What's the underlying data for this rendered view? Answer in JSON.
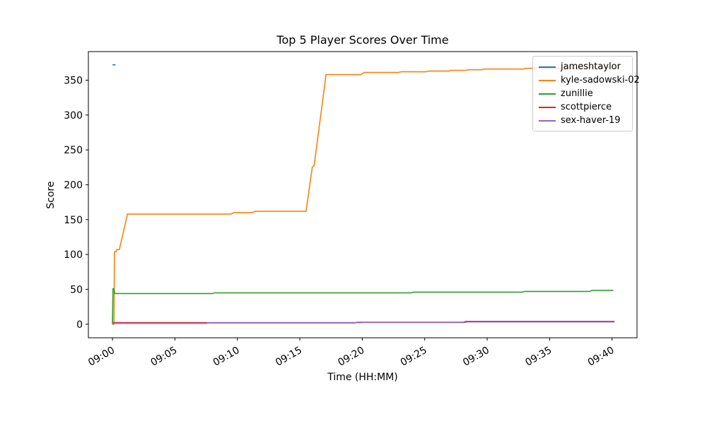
{
  "figure": {
    "title": "Top 5 Player Scores Over Time",
    "xlabel": "Time (HH:MM)",
    "ylabel": "Score"
  },
  "chart_data": {
    "type": "line",
    "title": "Top 5 Player Scores Over Time",
    "xlabel": "Time (HH:MM)",
    "ylabel": "Score",
    "x_unit": "minutes after 09:00",
    "xlim_minutes": [
      -1.93,
      42.0
    ],
    "ylim": [
      -19.5,
      391
    ],
    "grid": false,
    "legend": {
      "position": "upper right",
      "entries": [
        "jameshtaylor",
        "kyle-sadowski-02",
        "zunillie",
        "scottpierce",
        "sex-haver-19"
      ]
    },
    "xticks": [
      {
        "minute": 0,
        "label": "09:00"
      },
      {
        "minute": 5,
        "label": "09:05"
      },
      {
        "minute": 10,
        "label": "09:10"
      },
      {
        "minute": 15,
        "label": "09:15"
      },
      {
        "minute": 20,
        "label": "09:20"
      },
      {
        "minute": 25,
        "label": "09:25"
      },
      {
        "minute": 30,
        "label": "09:30"
      },
      {
        "minute": 35,
        "label": "09:35"
      },
      {
        "minute": 40,
        "label": "09:40"
      }
    ],
    "yticks": [
      0,
      50,
      100,
      150,
      200,
      250,
      300,
      350
    ],
    "series": [
      {
        "name": "jameshtaylor",
        "color": "#1f77b4",
        "points": [
          [
            0,
            372
          ],
          [
            0.25,
            372
          ]
        ]
      },
      {
        "name": "kyle-sadowski-02",
        "color": "#ff7f0e",
        "points": [
          [
            0,
            0
          ],
          [
            0.12,
            0
          ],
          [
            0.16,
            104
          ],
          [
            0.3,
            104
          ],
          [
            0.34,
            107
          ],
          [
            0.55,
            107
          ],
          [
            1.2,
            158
          ],
          [
            9.5,
            158
          ],
          [
            9.7,
            160
          ],
          [
            11.2,
            160
          ],
          [
            11.4,
            162
          ],
          [
            15.5,
            162
          ],
          [
            16.0,
            225
          ],
          [
            16.15,
            228
          ],
          [
            17.1,
            358
          ],
          [
            19.9,
            358
          ],
          [
            20.15,
            361
          ],
          [
            22.9,
            361
          ],
          [
            23.1,
            362
          ],
          [
            25.1,
            362
          ],
          [
            25.3,
            363
          ],
          [
            26.9,
            363
          ],
          [
            27.1,
            364
          ],
          [
            28.3,
            364
          ],
          [
            28.5,
            365
          ],
          [
            29.6,
            365
          ],
          [
            29.8,
            366
          ],
          [
            32.9,
            366
          ],
          [
            33.1,
            367
          ],
          [
            35.9,
            367
          ],
          [
            36.1,
            367.5
          ],
          [
            37.9,
            367.5
          ],
          [
            38.1,
            368.5
          ],
          [
            39.8,
            368.5
          ],
          [
            40.05,
            370
          ],
          [
            40.3,
            370
          ]
        ]
      },
      {
        "name": "zunillie",
        "color": "#2ca02c",
        "points": [
          [
            0,
            0
          ],
          [
            0.04,
            51
          ],
          [
            0.12,
            51
          ],
          [
            0.18,
            44
          ],
          [
            8.0,
            44
          ],
          [
            8.2,
            45
          ],
          [
            23.9,
            45
          ],
          [
            24.1,
            46
          ],
          [
            32.8,
            46
          ],
          [
            33.0,
            47
          ],
          [
            38.2,
            47
          ],
          [
            38.4,
            48.5
          ],
          [
            40.1,
            48.5
          ]
        ]
      },
      {
        "name": "scottpierce",
        "color": "#d62728",
        "points": [
          [
            0,
            0
          ],
          [
            0.05,
            2.2
          ],
          [
            7.5,
            2.2
          ],
          [
            7.7,
            1.8
          ],
          [
            19.4,
            1.8
          ],
          [
            19.6,
            2.8
          ],
          [
            28.1,
            2.8
          ],
          [
            28.3,
            4
          ],
          [
            40.2,
            4
          ]
        ]
      },
      {
        "name": "sex-haver-19",
        "color": "#9467bd",
        "points": [
          [
            0,
            1.2
          ],
          [
            7.5,
            1.2
          ],
          [
            7.7,
            2.2
          ],
          [
            19.9,
            2.2
          ],
          [
            20.1,
            2.5
          ],
          [
            28.2,
            2.5
          ],
          [
            28.4,
            3.2
          ],
          [
            40.2,
            3.2
          ]
        ]
      }
    ]
  }
}
